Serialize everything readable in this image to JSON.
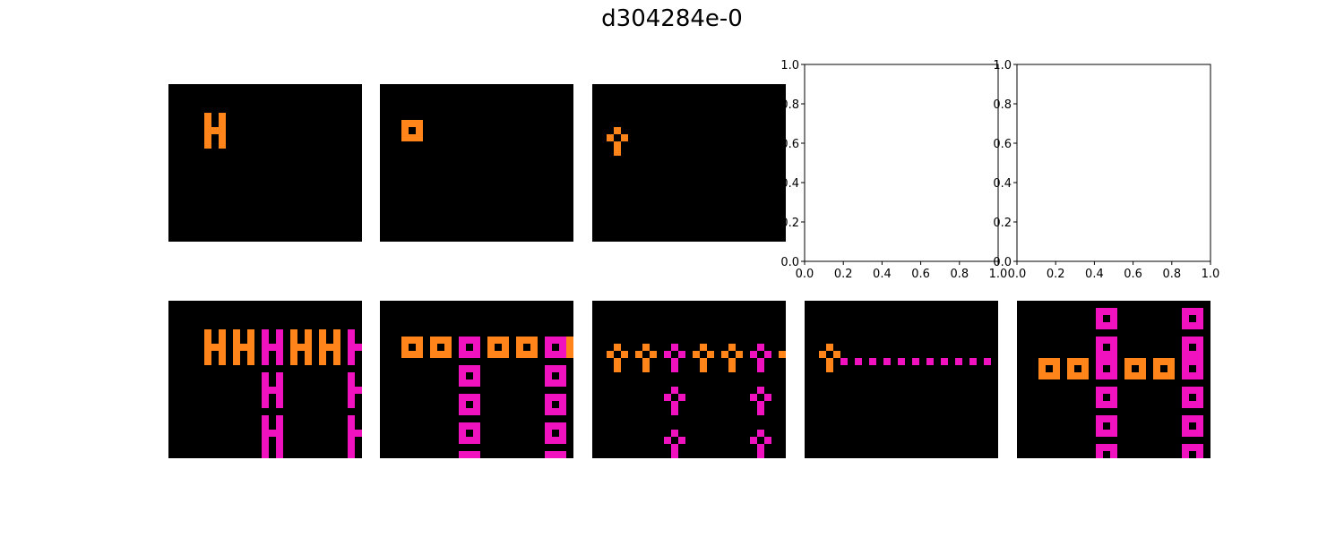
{
  "title": "d304284e-0",
  "colors": {
    "background": "#000000",
    "orange": "#ff851b",
    "magenta": "#f012be",
    "axis": "#000000"
  },
  "empty_axes_ticks": [
    "0.0",
    "0.2",
    "0.4",
    "0.6",
    "0.8",
    "1.0"
  ],
  "grid": {
    "rows": 22,
    "cols": 27
  },
  "panels": [
    {
      "row": 0,
      "col": 0,
      "kind": "grid",
      "shapes": [
        {
          "motif": "H",
          "r": 4,
          "c": 5,
          "color": "orange"
        }
      ]
    },
    {
      "row": 0,
      "col": 1,
      "kind": "grid",
      "shapes": [
        {
          "motif": "O",
          "r": 5,
          "c": 3,
          "color": "orange"
        }
      ]
    },
    {
      "row": 0,
      "col": 2,
      "kind": "grid",
      "shapes": [
        {
          "motif": "P",
          "r": 6,
          "c": 2,
          "color": "orange"
        }
      ]
    },
    {
      "row": 0,
      "col": 3,
      "kind": "empty-axes"
    },
    {
      "row": 0,
      "col": 4,
      "kind": "empty-axes"
    },
    {
      "row": 1,
      "col": 0,
      "kind": "grid",
      "shapes": [
        {
          "motif": "H",
          "r": 4,
          "c": 5,
          "color": "orange"
        },
        {
          "motif": "H",
          "r": 4,
          "c": 9,
          "color": "orange"
        },
        {
          "motif": "H",
          "r": 4,
          "c": 13,
          "color": "magenta"
        },
        {
          "motif": "H",
          "r": 4,
          "c": 17,
          "color": "orange"
        },
        {
          "motif": "H",
          "r": 4,
          "c": 21,
          "color": "orange"
        },
        {
          "motif": "H",
          "r": 4,
          "c": 25,
          "color": "magenta"
        },
        {
          "motif": "H",
          "r": 10,
          "c": 13,
          "color": "magenta"
        },
        {
          "motif": "H",
          "r": 10,
          "c": 25,
          "color": "magenta"
        },
        {
          "motif": "H",
          "r": 16,
          "c": 13,
          "color": "magenta"
        },
        {
          "motif": "H",
          "r": 16,
          "c": 25,
          "color": "magenta"
        },
        {
          "motif": "H",
          "r": 21,
          "c": 13,
          "color": "magenta"
        },
        {
          "motif": "H",
          "r": 21,
          "c": 25,
          "color": "magenta"
        }
      ]
    },
    {
      "row": 1,
      "col": 1,
      "kind": "grid",
      "shapes": [
        {
          "motif": "O",
          "r": 5,
          "c": 3,
          "color": "orange"
        },
        {
          "motif": "O",
          "r": 5,
          "c": 7,
          "color": "orange"
        },
        {
          "motif": "O",
          "r": 5,
          "c": 11,
          "color": "magenta"
        },
        {
          "motif": "O",
          "r": 5,
          "c": 15,
          "color": "orange"
        },
        {
          "motif": "O",
          "r": 5,
          "c": 19,
          "color": "orange"
        },
        {
          "motif": "O",
          "r": 5,
          "c": 23,
          "color": "magenta"
        },
        {
          "motif": "O",
          "r": 5,
          "c": 26,
          "color": "orange"
        },
        {
          "motif": "O",
          "r": 9,
          "c": 11,
          "color": "magenta"
        },
        {
          "motif": "O",
          "r": 9,
          "c": 23,
          "color": "magenta"
        },
        {
          "motif": "O",
          "r": 13,
          "c": 11,
          "color": "magenta"
        },
        {
          "motif": "O",
          "r": 13,
          "c": 23,
          "color": "magenta"
        },
        {
          "motif": "O",
          "r": 17,
          "c": 11,
          "color": "magenta"
        },
        {
          "motif": "O",
          "r": 17,
          "c": 23,
          "color": "magenta"
        },
        {
          "motif": "O",
          "r": 21,
          "c": 11,
          "color": "magenta"
        },
        {
          "motif": "O",
          "r": 21,
          "c": 23,
          "color": "magenta"
        }
      ]
    },
    {
      "row": 1,
      "col": 2,
      "kind": "grid",
      "shapes": [
        {
          "motif": "P",
          "r": 6,
          "c": 2,
          "color": "orange"
        },
        {
          "motif": "P",
          "r": 6,
          "c": 6,
          "color": "orange"
        },
        {
          "motif": "P",
          "r": 6,
          "c": 10,
          "color": "magenta"
        },
        {
          "motif": "P",
          "r": 6,
          "c": 14,
          "color": "orange"
        },
        {
          "motif": "P",
          "r": 6,
          "c": 18,
          "color": "orange"
        },
        {
          "motif": "P",
          "r": 6,
          "c": 22,
          "color": "magenta"
        },
        {
          "motif": "P",
          "r": 6,
          "c": 26,
          "color": "orange"
        },
        {
          "motif": "P",
          "r": 12,
          "c": 10,
          "color": "magenta"
        },
        {
          "motif": "P",
          "r": 12,
          "c": 22,
          "color": "magenta"
        },
        {
          "motif": "P",
          "r": 18,
          "c": 10,
          "color": "magenta"
        },
        {
          "motif": "P",
          "r": 18,
          "c": 22,
          "color": "magenta"
        }
      ]
    },
    {
      "row": 1,
      "col": 3,
      "kind": "grid",
      "shapes": [
        {
          "motif": "P",
          "r": 6,
          "c": 2,
          "color": "orange"
        },
        {
          "motif": "DOTS",
          "r": 8,
          "c": 5,
          "color": "magenta"
        }
      ]
    },
    {
      "row": 1,
      "col": 4,
      "kind": "grid",
      "shapes": [
        {
          "motif": "O",
          "r": 8,
          "c": 3,
          "color": "orange"
        },
        {
          "motif": "O",
          "r": 8,
          "c": 7,
          "color": "orange"
        },
        {
          "motif": "O",
          "r": 8,
          "c": 11,
          "color": "magenta"
        },
        {
          "motif": "O",
          "r": 8,
          "c": 15,
          "color": "orange"
        },
        {
          "motif": "O",
          "r": 8,
          "c": 19,
          "color": "orange"
        },
        {
          "motif": "O",
          "r": 8,
          "c": 23,
          "color": "magenta"
        },
        {
          "motif": "O",
          "r": 8,
          "c": 27,
          "color": "orange"
        },
        {
          "motif": "O",
          "r": 1,
          "c": 11,
          "color": "magenta"
        },
        {
          "motif": "O",
          "r": 1,
          "c": 23,
          "color": "magenta"
        },
        {
          "motif": "O",
          "r": 5,
          "c": 11,
          "color": "magenta"
        },
        {
          "motif": "O",
          "r": 5,
          "c": 23,
          "color": "magenta"
        },
        {
          "motif": "O",
          "r": 12,
          "c": 11,
          "color": "magenta"
        },
        {
          "motif": "O",
          "r": 12,
          "c": 23,
          "color": "magenta"
        },
        {
          "motif": "O",
          "r": 16,
          "c": 11,
          "color": "magenta"
        },
        {
          "motif": "O",
          "r": 16,
          "c": 23,
          "color": "magenta"
        },
        {
          "motif": "O",
          "r": 20,
          "c": 11,
          "color": "magenta"
        },
        {
          "motif": "O",
          "r": 20,
          "c": 23,
          "color": "magenta"
        }
      ]
    }
  ]
}
